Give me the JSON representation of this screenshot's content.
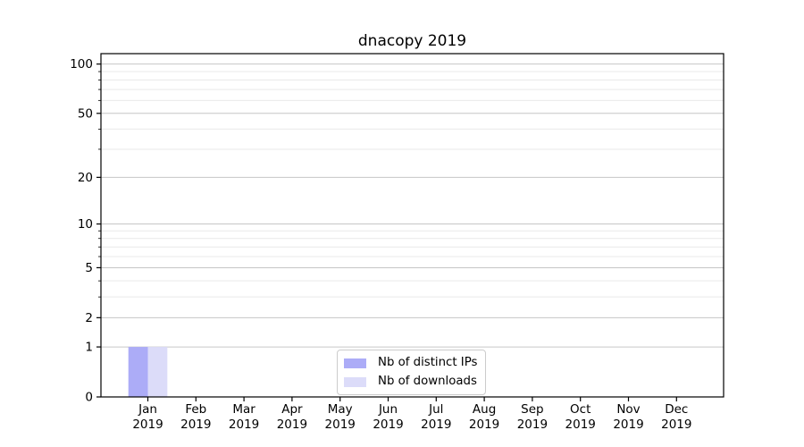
{
  "chart_data": {
    "type": "bar",
    "title": "dnacopy 2019",
    "categories": [
      "Jan",
      "Feb",
      "Mar",
      "Apr",
      "May",
      "Jun",
      "Jul",
      "Aug",
      "Sep",
      "Oct",
      "Nov",
      "Dec"
    ],
    "category_sublabels": [
      "2019",
      "2019",
      "2019",
      "2019",
      "2019",
      "2019",
      "2019",
      "2019",
      "2019",
      "2019",
      "2019",
      "2019"
    ],
    "series": [
      {
        "name": "Nb of distinct IPs",
        "color": "#acacf7",
        "values": [
          1,
          0,
          0,
          0,
          0,
          0,
          0,
          0,
          0,
          0,
          0,
          0
        ]
      },
      {
        "name": "Nb of downloads",
        "color": "#dcdcf9",
        "values": [
          1,
          0,
          0,
          0,
          0,
          0,
          0,
          0,
          0,
          0,
          0,
          0
        ]
      }
    ],
    "y_axis": {
      "scale": "log1p",
      "ticks": [
        0,
        1,
        2,
        5,
        10,
        20,
        50,
        100
      ],
      "minor_ticks": [
        3,
        4,
        6,
        7,
        8,
        9,
        30,
        40,
        60,
        70,
        80,
        90
      ],
      "ylim": [
        0,
        115.7
      ]
    },
    "legend": {
      "position": "lower center"
    },
    "colors": {
      "major_grid": "#c6c6c6",
      "minor_grid": "#e9e9e9",
      "axis": "#000000",
      "text": "#000000"
    },
    "grid": "on"
  }
}
